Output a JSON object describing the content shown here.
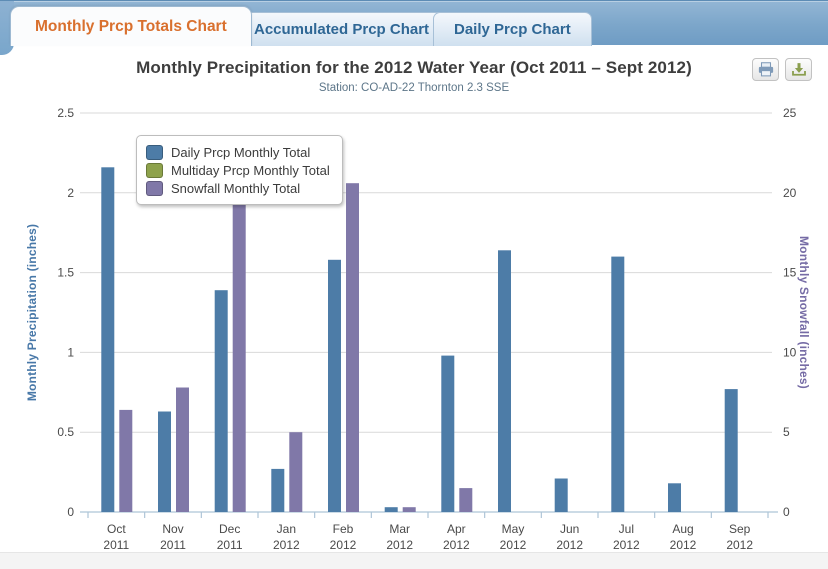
{
  "tabs": [
    {
      "label": "Monthly Prcp Totals Chart",
      "active": true
    },
    {
      "label": "Accumulated Prcp Chart",
      "active": false
    },
    {
      "label": "Daily Prcp Chart",
      "active": false
    }
  ],
  "toolbar": {
    "icons": [
      {
        "name": "print-icon",
        "color": "#7f9ab8"
      },
      {
        "name": "download-icon",
        "color": "#8a9e4e"
      }
    ]
  },
  "chart_data": {
    "type": "bar",
    "title": "Monthly Precipitation for the 2012 Water Year (Oct 2011 – Sept 2012)",
    "subtitle": "Station: CO-AD-22 Thornton 2.3 SSE",
    "categories": [
      "Oct 2011",
      "Nov 2011",
      "Dec 2011",
      "Jan 2012",
      "Feb 2012",
      "Mar 2012",
      "Apr 2012",
      "May 2012",
      "Jun 2012",
      "Jul 2012",
      "Aug 2012",
      "Sep 2012"
    ],
    "series": [
      {
        "name": "Daily Prcp Monthly Total",
        "axis": "left",
        "color": "#4d7ca7",
        "values": [
          2.16,
          0.63,
          1.39,
          0.27,
          1.58,
          0.03,
          0.98,
          1.64,
          0.21,
          1.6,
          0.18,
          0.77
        ]
      },
      {
        "name": "Multiday Prcp Monthly Total",
        "axis": "left",
        "color": "#8ea24c",
        "values": [
          0,
          0,
          0,
          0,
          0,
          0,
          0,
          0,
          0,
          0,
          0,
          0
        ]
      },
      {
        "name": "Snowfall Monthly Total",
        "axis": "right",
        "color": "#8078a8",
        "values": [
          6.4,
          7.8,
          19.9,
          5.0,
          20.6,
          0.3,
          1.5,
          0,
          0,
          0,
          0,
          0
        ]
      }
    ],
    "left_axis": {
      "label": "Monthly Precipitation (inches)",
      "min": 0,
      "max": 2.5,
      "ticks": [
        0,
        0.5,
        1,
        1.5,
        2,
        2.5
      ],
      "tick_labels": [
        "0",
        "0.5",
        "1",
        "1.5",
        "2",
        "2.5"
      ],
      "color": "#4878a8"
    },
    "right_axis": {
      "label": "Monthly Snowfall (inches)",
      "min": 0,
      "max": 25,
      "ticks": [
        0,
        5,
        10,
        15,
        20,
        25
      ],
      "tick_labels": [
        "0",
        "5",
        "10",
        "15",
        "20",
        "25"
      ],
      "color": "#756ba5"
    },
    "legend": {
      "position": "top-left"
    },
    "grid": true
  },
  "colors": {
    "grid": "#d9d9d9",
    "axis_line": "#aec5d7",
    "tab_band": "#79a3c8",
    "tab_active_text": "#d9702e",
    "tab_inactive_text": "#2f6795",
    "footer": "#f4f4f4"
  }
}
